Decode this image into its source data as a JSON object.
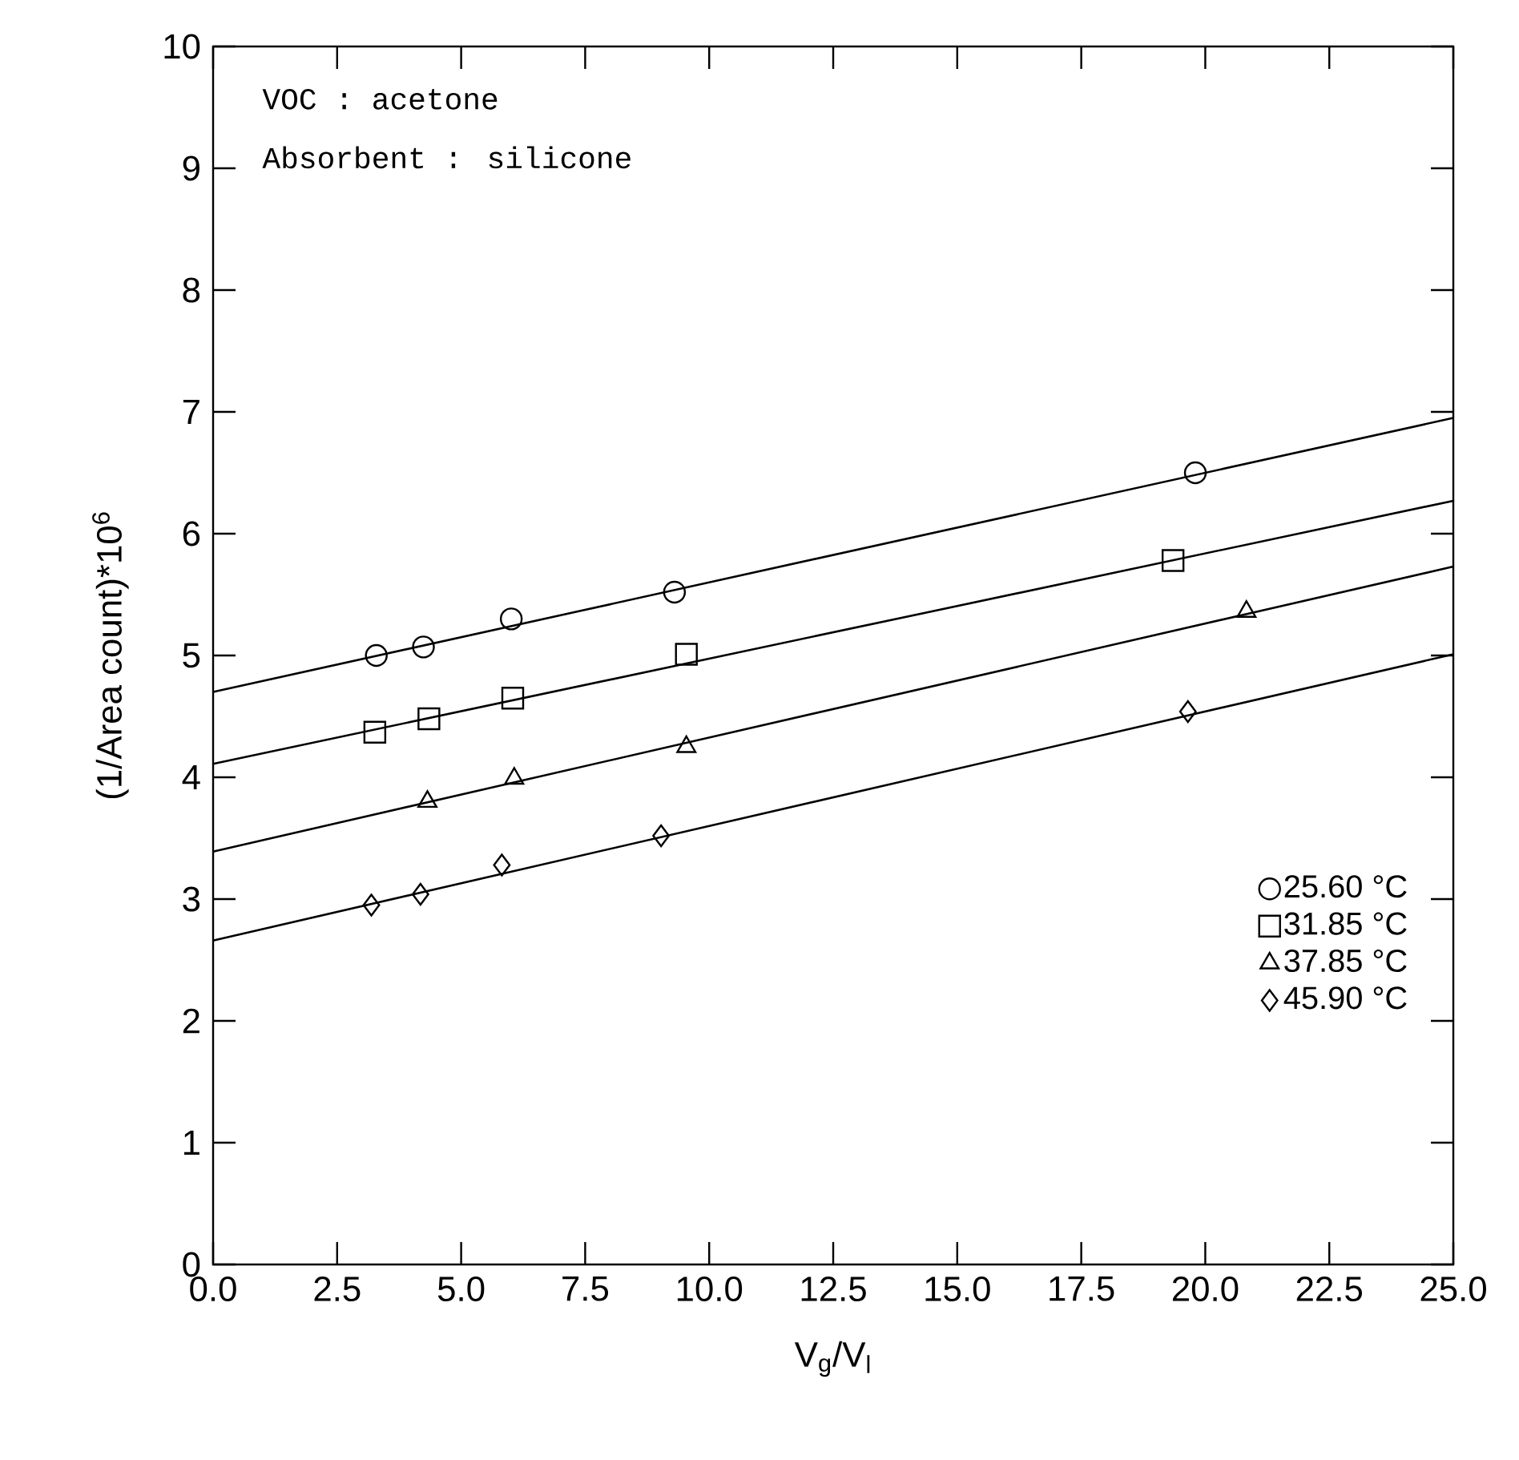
{
  "chart_data": {
    "type": "scatter",
    "xlabel": "V$_{g}$/V$_{l}$",
    "ylabel": "(1/Area count)*10$^{6}$",
    "annotations": [
      "VOC : acetone",
      "Absorbent : silicone"
    ],
    "xlim": [
      0,
      25
    ],
    "ylim": [
      0,
      10
    ],
    "xticks": [
      {
        "value": 0,
        "label": "0.0"
      },
      {
        "value": 2.5,
        "label": "2.5"
      },
      {
        "value": 5,
        "label": "5.0"
      },
      {
        "value": 7.5,
        "label": "7.5"
      },
      {
        "value": 10,
        "label": "10.0"
      },
      {
        "value": 12.5,
        "label": "12.5"
      },
      {
        "value": 15,
        "label": "15.0"
      },
      {
        "value": 17.5,
        "label": "17.5"
      },
      {
        "value": 20,
        "label": "20.0"
      },
      {
        "value": 22.5,
        "label": "22.5"
      },
      {
        "value": 25,
        "label": "25.0"
      }
    ],
    "yticks": [
      0,
      1,
      2,
      3,
      4,
      5,
      6,
      7,
      8,
      9,
      10
    ],
    "legend": "bottom right",
    "grid": false,
    "series": [
      {
        "name": "25.60 °C",
        "marker": "circle",
        "color": "#000000",
        "x": [
          3.29,
          4.24,
          6.01,
          9.3,
          19.8
        ],
        "values": [
          5.0,
          5.07,
          5.3,
          5.52,
          6.5
        ]
      },
      {
        "name": "31.85 °C",
        "marker": "square",
        "color": "#000000",
        "x": [
          3.26,
          4.35,
          6.04,
          9.54,
          19.35
        ],
        "values": [
          4.37,
          4.48,
          4.65,
          5.01,
          5.78
        ]
      },
      {
        "name": "37.85 °C",
        "marker": "triangle",
        "color": "#000000",
        "x": [
          4.32,
          6.07,
          9.54,
          20.83
        ],
        "values": [
          3.8,
          3.99,
          4.25,
          5.36
        ]
      },
      {
        "name": "45.90 °C",
        "marker": "diamond",
        "color": "#000000",
        "x": [
          3.19,
          4.18,
          5.82,
          9.03,
          19.65
        ],
        "values": [
          2.95,
          3.04,
          3.28,
          3.52,
          4.54
        ]
      },
      {
        "type": "line",
        "marker": "none",
        "color": "#000000",
        "x": [
          0,
          25
        ],
        "values": [
          4.7,
          6.95
        ]
      },
      {
        "type": "line",
        "marker": "none",
        "color": "#000000",
        "x": [
          0,
          25
        ],
        "values": [
          4.11,
          6.27
        ]
      },
      {
        "type": "line",
        "marker": "none",
        "color": "#000000",
        "x": [
          0,
          25
        ],
        "values": [
          3.39,
          5.73
        ]
      },
      {
        "type": "line",
        "marker": "none",
        "color": "#000000",
        "x": [
          0,
          25
        ],
        "values": [
          2.66,
          5.01
        ]
      }
    ]
  }
}
